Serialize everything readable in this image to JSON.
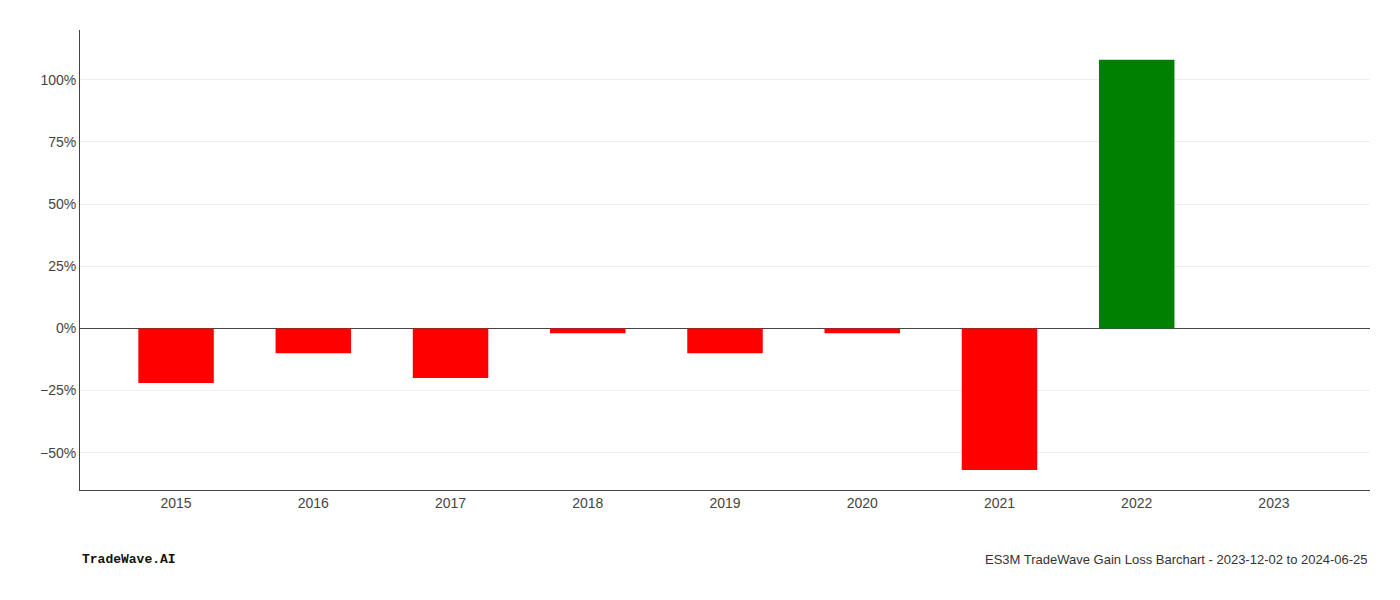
{
  "chart_data": {
    "type": "bar",
    "title": "ES3M TradeWave Gain Loss Barchart - 2023-12-02 to 2024-06-25",
    "annotations": [
      "TradeWave.AI"
    ],
    "x": [
      2015,
      2016,
      2017,
      2018,
      2019,
      2020,
      2021,
      2022,
      2023
    ],
    "values": [
      -22,
      -10,
      -20,
      -2,
      -10,
      -2,
      -57,
      108,
      0
    ],
    "colors": [
      "#ff0000",
      "#ff0000",
      "#ff0000",
      "#ff0000",
      "#ff0000",
      "#ff0000",
      "#ff0000",
      "#008000",
      "#ffffff"
    ],
    "xlim": [
      2014.3,
      2023.7
    ],
    "xticks": [
      2015,
      2016,
      2017,
      2018,
      2019,
      2020,
      2021,
      2022,
      2023
    ],
    "ylim": [
      -65,
      120
    ],
    "yticks": [
      {
        "value": -50,
        "label": "−50%"
      },
      {
        "value": -25,
        "label": "−25%"
      },
      {
        "value": 0,
        "label": "0%"
      },
      {
        "value": 25,
        "label": "25%"
      },
      {
        "value": 50,
        "label": "50%"
      },
      {
        "value": 75,
        "label": "75%"
      },
      {
        "value": 100,
        "label": "100%"
      }
    ],
    "grid": true
  }
}
